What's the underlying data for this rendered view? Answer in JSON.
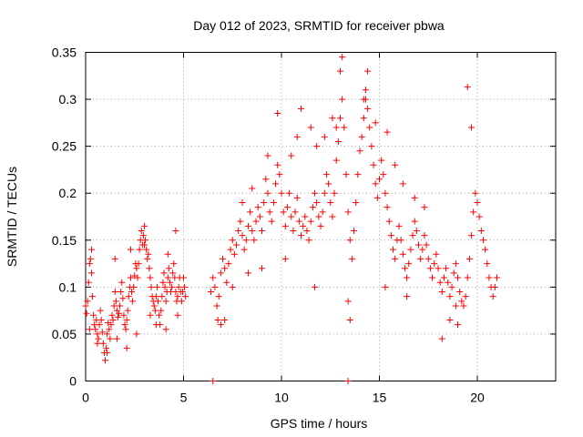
{
  "chart_data": {
    "type": "scatter",
    "title": "Day 012 of 2023, SRMTID for receiver pbwa",
    "xlabel": "GPS time / hours",
    "ylabel": "SRMTID / TECUs",
    "xlim": [
      0,
      24
    ],
    "ylim": [
      0,
      0.35
    ],
    "x_ticks": [
      0,
      5,
      10,
      15,
      20
    ],
    "x_tick_labels": [
      "0",
      "5",
      "10",
      "15",
      "20"
    ],
    "y_ticks": [
      0,
      0.05,
      0.1,
      0.15,
      0.2,
      0.25,
      0.3,
      0.35
    ],
    "y_tick_labels": [
      "0",
      "0.05",
      "0.1",
      "0.15",
      "0.2",
      "0.25",
      "0.3",
      "0.35"
    ],
    "grid": true,
    "marker": "+",
    "color": "#ff0000",
    "series": [
      {
        "name": "SRMTID",
        "points": [
          [
            0.0,
            0.08
          ],
          [
            0.05,
            0.072
          ],
          [
            0.1,
            0.085
          ],
          [
            0.15,
            0.105
          ],
          [
            0.2,
            0.125
          ],
          [
            0.25,
            0.13
          ],
          [
            0.3,
            0.115
          ],
          [
            0.35,
            0.09
          ],
          [
            0.4,
            0.07
          ],
          [
            0.45,
            0.06
          ],
          [
            0.5,
            0.055
          ],
          [
            0.55,
            0.065
          ],
          [
            0.6,
            0.05
          ],
          [
            0.65,
            0.045
          ],
          [
            0.7,
            0.06
          ],
          [
            0.75,
            0.075
          ],
          [
            0.8,
            0.065
          ],
          [
            0.85,
            0.052
          ],
          [
            0.9,
            0.04
          ],
          [
            0.95,
            0.03
          ],
          [
            1.0,
            0.022
          ],
          [
            1.05,
            0.035
          ],
          [
            1.1,
            0.05
          ],
          [
            1.15,
            0.062
          ],
          [
            1.2,
            0.055
          ],
          [
            1.25,
            0.045
          ],
          [
            1.3,
            0.06
          ],
          [
            1.35,
            0.07
          ],
          [
            1.4,
            0.065
          ],
          [
            1.45,
            0.08
          ],
          [
            1.5,
            0.095
          ],
          [
            1.55,
            0.085
          ],
          [
            1.6,
            0.075
          ],
          [
            1.65,
            0.068
          ],
          [
            1.7,
            0.072
          ],
          [
            1.75,
            0.08
          ],
          [
            1.8,
            0.095
          ],
          [
            1.85,
            0.105
          ],
          [
            1.9,
            0.088
          ],
          [
            1.95,
            0.07
          ],
          [
            2.0,
            0.06
          ],
          [
            2.05,
            0.055
          ],
          [
            2.1,
            0.065
          ],
          [
            2.15,
            0.075
          ],
          [
            2.2,
            0.09
          ],
          [
            2.25,
            0.1
          ],
          [
            2.3,
            0.11
          ],
          [
            2.35,
            0.095
          ],
          [
            2.4,
            0.085
          ],
          [
            2.45,
            0.1
          ],
          [
            2.5,
            0.112
          ],
          [
            2.55,
            0.125
          ],
          [
            2.6,
            0.12
          ],
          [
            2.65,
            0.11
          ],
          [
            2.7,
            0.125
          ],
          [
            2.75,
            0.14
          ],
          [
            2.8,
            0.15
          ],
          [
            2.85,
            0.16
          ],
          [
            2.9,
            0.145
          ],
          [
            2.95,
            0.155
          ],
          [
            3.0,
            0.165
          ],
          [
            3.05,
            0.15
          ],
          [
            3.1,
            0.14
          ],
          [
            3.15,
            0.13
          ],
          [
            3.2,
            0.135
          ],
          [
            3.25,
            0.12
          ],
          [
            3.3,
            0.11
          ],
          [
            3.35,
            0.1
          ],
          [
            3.4,
            0.09
          ],
          [
            3.45,
            0.085
          ],
          [
            3.5,
            0.08
          ],
          [
            3.55,
            0.075
          ],
          [
            3.6,
            0.09
          ],
          [
            3.65,
            0.1
          ],
          [
            3.7,
            0.085
          ],
          [
            3.75,
            0.07
          ],
          [
            3.8,
            0.06
          ],
          [
            3.85,
            0.075
          ],
          [
            3.9,
            0.09
          ],
          [
            3.95,
            0.105
          ],
          [
            4.0,
            0.115
          ],
          [
            4.05,
            0.1
          ],
          [
            4.1,
            0.085
          ],
          [
            4.15,
            0.095
          ],
          [
            4.2,
            0.11
          ],
          [
            4.25,
            0.12
          ],
          [
            4.3,
            0.105
          ],
          [
            4.35,
            0.095
          ],
          [
            4.4,
            0.1
          ],
          [
            4.45,
            0.115
          ],
          [
            4.5,
            0.125
          ],
          [
            4.55,
            0.11
          ],
          [
            4.6,
            0.095
          ],
          [
            4.65,
            0.085
          ],
          [
            4.7,
            0.09
          ],
          [
            4.75,
            0.1
          ],
          [
            4.8,
            0.11
          ],
          [
            4.85,
            0.095
          ],
          [
            4.9,
            0.085
          ],
          [
            4.95,
            0.095
          ],
          [
            5.0,
            0.11
          ],
          [
            5.05,
            0.1
          ],
          [
            5.1,
            0.09
          ],
          [
            0.2,
            0.055
          ],
          [
            0.6,
            0.04
          ],
          [
            1.1,
            0.03
          ],
          [
            1.6,
            0.045
          ],
          [
            2.1,
            0.035
          ],
          [
            2.6,
            0.05
          ],
          [
            3.3,
            0.07
          ],
          [
            3.6,
            0.06
          ],
          [
            4.1,
            0.055
          ],
          [
            4.7,
            0.07
          ],
          [
            0.3,
            0.14
          ],
          [
            1.5,
            0.13
          ],
          [
            2.3,
            0.14
          ],
          [
            3.0,
            0.145
          ],
          [
            4.6,
            0.16
          ],
          [
            4.2,
            0.135
          ],
          [
            6.5,
            0.0
          ],
          [
            13.4,
            0.0
          ],
          [
            6.4,
            0.095
          ],
          [
            6.5,
            0.11
          ],
          [
            6.6,
            0.1
          ],
          [
            6.7,
            0.08
          ],
          [
            6.75,
            0.065
          ],
          [
            6.8,
            0.09
          ],
          [
            6.9,
            0.115
          ],
          [
            7.0,
            0.13
          ],
          [
            7.1,
            0.12
          ],
          [
            7.2,
            0.105
          ],
          [
            7.3,
            0.125
          ],
          [
            7.4,
            0.14
          ],
          [
            7.5,
            0.15
          ],
          [
            7.6,
            0.135
          ],
          [
            7.7,
            0.145
          ],
          [
            7.8,
            0.16
          ],
          [
            7.9,
            0.17
          ],
          [
            8.0,
            0.155
          ],
          [
            8.1,
            0.14
          ],
          [
            8.2,
            0.15
          ],
          [
            8.3,
            0.165
          ],
          [
            8.4,
            0.18
          ],
          [
            8.5,
            0.16
          ],
          [
            8.6,
            0.15
          ],
          [
            8.7,
            0.17
          ],
          [
            8.8,
            0.185
          ],
          [
            8.9,
            0.175
          ],
          [
            9.0,
            0.16
          ],
          [
            9.1,
            0.19
          ],
          [
            9.2,
            0.215
          ],
          [
            9.3,
            0.2
          ],
          [
            9.4,
            0.18
          ],
          [
            9.5,
            0.17
          ],
          [
            9.6,
            0.19
          ],
          [
            9.7,
            0.21
          ],
          [
            9.8,
            0.23
          ],
          [
            9.9,
            0.22
          ],
          [
            10.0,
            0.2
          ],
          [
            10.1,
            0.18
          ],
          [
            10.2,
            0.165
          ],
          [
            10.3,
            0.185
          ],
          [
            10.4,
            0.2
          ],
          [
            10.5,
            0.175
          ],
          [
            10.6,
            0.16
          ],
          [
            10.7,
            0.18
          ],
          [
            10.8,
            0.195
          ],
          [
            10.9,
            0.17
          ],
          [
            11.0,
            0.155
          ],
          [
            11.1,
            0.165
          ],
          [
            11.2,
            0.175
          ],
          [
            11.3,
            0.16
          ],
          [
            11.4,
            0.15
          ],
          [
            11.5,
            0.17
          ],
          [
            11.6,
            0.185
          ],
          [
            11.7,
            0.2
          ],
          [
            11.8,
            0.19
          ],
          [
            11.9,
            0.175
          ],
          [
            12.0,
            0.165
          ],
          [
            12.1,
            0.18
          ],
          [
            12.2,
            0.2
          ],
          [
            12.3,
            0.22
          ],
          [
            12.4,
            0.21
          ],
          [
            12.5,
            0.19
          ],
          [
            12.6,
            0.175
          ],
          [
            12.7,
            0.2
          ],
          [
            12.8,
            0.235
          ],
          [
            12.9,
            0.255
          ],
          [
            13.0,
            0.28
          ],
          [
            13.1,
            0.3
          ],
          [
            13.2,
            0.27
          ],
          [
            13.3,
            0.22
          ],
          [
            13.4,
            0.18
          ],
          [
            13.5,
            0.15
          ],
          [
            13.6,
            0.13
          ],
          [
            13.7,
            0.16
          ],
          [
            13.8,
            0.19
          ],
          [
            13.9,
            0.22
          ],
          [
            14.0,
            0.245
          ],
          [
            14.1,
            0.26
          ],
          [
            14.2,
            0.28
          ],
          [
            14.3,
            0.3
          ],
          [
            14.4,
            0.29
          ],
          [
            14.5,
            0.27
          ],
          [
            14.6,
            0.25
          ],
          [
            14.7,
            0.23
          ],
          [
            14.8,
            0.21
          ],
          [
            14.9,
            0.195
          ],
          [
            15.0,
            0.215
          ],
          [
            15.1,
            0.235
          ],
          [
            15.2,
            0.22
          ],
          [
            15.3,
            0.2
          ],
          [
            15.4,
            0.185
          ],
          [
            15.5,
            0.17
          ],
          [
            15.6,
            0.155
          ],
          [
            15.7,
            0.14
          ],
          [
            15.8,
            0.13
          ],
          [
            15.9,
            0.15
          ],
          [
            16.0,
            0.165
          ],
          [
            16.1,
            0.15
          ],
          [
            16.2,
            0.135
          ],
          [
            16.3,
            0.12
          ],
          [
            16.4,
            0.11
          ],
          [
            16.5,
            0.125
          ],
          [
            16.6,
            0.14
          ],
          [
            16.7,
            0.155
          ],
          [
            16.8,
            0.17
          ],
          [
            16.9,
            0.16
          ],
          [
            17.0,
            0.145
          ],
          [
            17.1,
            0.13
          ],
          [
            17.2,
            0.14
          ],
          [
            17.3,
            0.155
          ],
          [
            17.4,
            0.145
          ],
          [
            17.5,
            0.13
          ],
          [
            17.6,
            0.12
          ],
          [
            17.7,
            0.11
          ],
          [
            17.8,
            0.125
          ],
          [
            17.9,
            0.135
          ],
          [
            18.0,
            0.12
          ],
          [
            18.1,
            0.105
          ],
          [
            18.2,
            0.095
          ],
          [
            18.3,
            0.11
          ],
          [
            18.4,
            0.12
          ],
          [
            18.5,
            0.105
          ],
          [
            18.6,
            0.09
          ],
          [
            18.7,
            0.1
          ],
          [
            18.8,
            0.115
          ],
          [
            18.9,
            0.125
          ],
          [
            19.0,
            0.11
          ],
          [
            19.1,
            0.095
          ],
          [
            19.2,
            0.085
          ],
          [
            19.3,
            0.08
          ],
          [
            19.4,
            0.09
          ],
          [
            19.5,
            0.11
          ],
          [
            19.6,
            0.13
          ],
          [
            19.7,
            0.155
          ],
          [
            19.8,
            0.18
          ],
          [
            19.9,
            0.2
          ],
          [
            20.0,
            0.19
          ],
          [
            20.1,
            0.175
          ],
          [
            20.2,
            0.16
          ],
          [
            20.3,
            0.15
          ],
          [
            20.4,
            0.14
          ],
          [
            20.5,
            0.125
          ],
          [
            20.6,
            0.11
          ],
          [
            20.7,
            0.1
          ],
          [
            20.8,
            0.09
          ],
          [
            20.9,
            0.1
          ],
          [
            21.0,
            0.11
          ],
          [
            13.1,
            0.345
          ],
          [
            13.0,
            0.33
          ],
          [
            14.4,
            0.33
          ],
          [
            14.3,
            0.31
          ],
          [
            14.2,
            0.3
          ],
          [
            11.0,
            0.29
          ],
          [
            9.8,
            0.285
          ],
          [
            12.6,
            0.28
          ],
          [
            12.8,
            0.27
          ],
          [
            11.5,
            0.27
          ],
          [
            10.8,
            0.26
          ],
          [
            14.8,
            0.275
          ],
          [
            15.4,
            0.265
          ],
          [
            19.5,
            0.313
          ],
          [
            19.7,
            0.27
          ],
          [
            13.5,
            0.065
          ],
          [
            13.4,
            0.085
          ],
          [
            7.1,
            0.065
          ],
          [
            6.9,
            0.06
          ],
          [
            8.0,
            0.19
          ],
          [
            8.5,
            0.205
          ],
          [
            9.3,
            0.24
          ],
          [
            10.5,
            0.24
          ],
          [
            11.8,
            0.25
          ],
          [
            12.2,
            0.26
          ],
          [
            15.8,
            0.23
          ],
          [
            16.2,
            0.21
          ],
          [
            16.8,
            0.195
          ],
          [
            17.3,
            0.185
          ],
          [
            18.9,
            0.08
          ],
          [
            18.6,
            0.065
          ],
          [
            19.0,
            0.06
          ],
          [
            16.4,
            0.09
          ],
          [
            15.3,
            0.1
          ],
          [
            11.7,
            0.1
          ],
          [
            10.2,
            0.13
          ],
          [
            9.0,
            0.12
          ],
          [
            8.3,
            0.115
          ],
          [
            7.5,
            0.1
          ],
          [
            18.2,
            0.045
          ]
        ]
      }
    ]
  }
}
